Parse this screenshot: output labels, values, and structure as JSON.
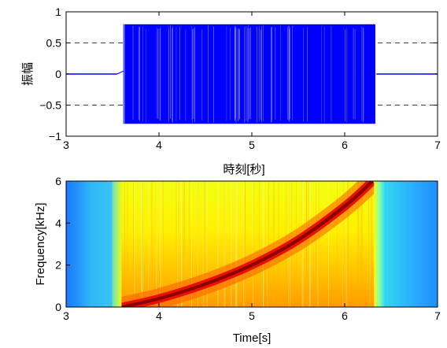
{
  "chart_data": [
    {
      "type": "line",
      "xlim": [
        3,
        7
      ],
      "ylim": [
        -1,
        1
      ],
      "xticks": [
        3,
        4,
        5,
        6,
        7
      ],
      "yticks": [
        -1,
        -0.5,
        0,
        0.5,
        1
      ],
      "xlabel": "時刻[秒]",
      "ylabel": "振幅",
      "grid": "dashed horizontal at ±0.5",
      "series": [
        {
          "color": "#0000ff",
          "description_values": {
            "t": [
              3.0,
              3.55,
              3.62,
              3.63,
              6.33,
              6.34,
              7.0
            ],
            "envelope_amplitude": [
              0.0,
              0.0,
              0.5,
              0.8,
              0.8,
              0.0,
              0.0
            ]
          }
        }
      ]
    },
    {
      "type": "heatmap",
      "xlim": [
        3,
        7
      ],
      "ylim": [
        0,
        6
      ],
      "xticks": [
        3,
        4,
        5,
        6,
        7
      ],
      "yticks": [
        0,
        2,
        4,
        6
      ],
      "xlabel": "Time[s]",
      "ylabel": "Frequency[kHz]",
      "colormap": "jet",
      "chirp_ridge": {
        "t": [
          3.6,
          4.0,
          4.5,
          5.0,
          5.5,
          6.0,
          6.3
        ],
        "freq_khz": [
          0.0,
          0.4,
          1.1,
          2.0,
          3.2,
          4.8,
          6.0
        ]
      },
      "signal_on": [
        3.58,
        6.35
      ]
    }
  ]
}
